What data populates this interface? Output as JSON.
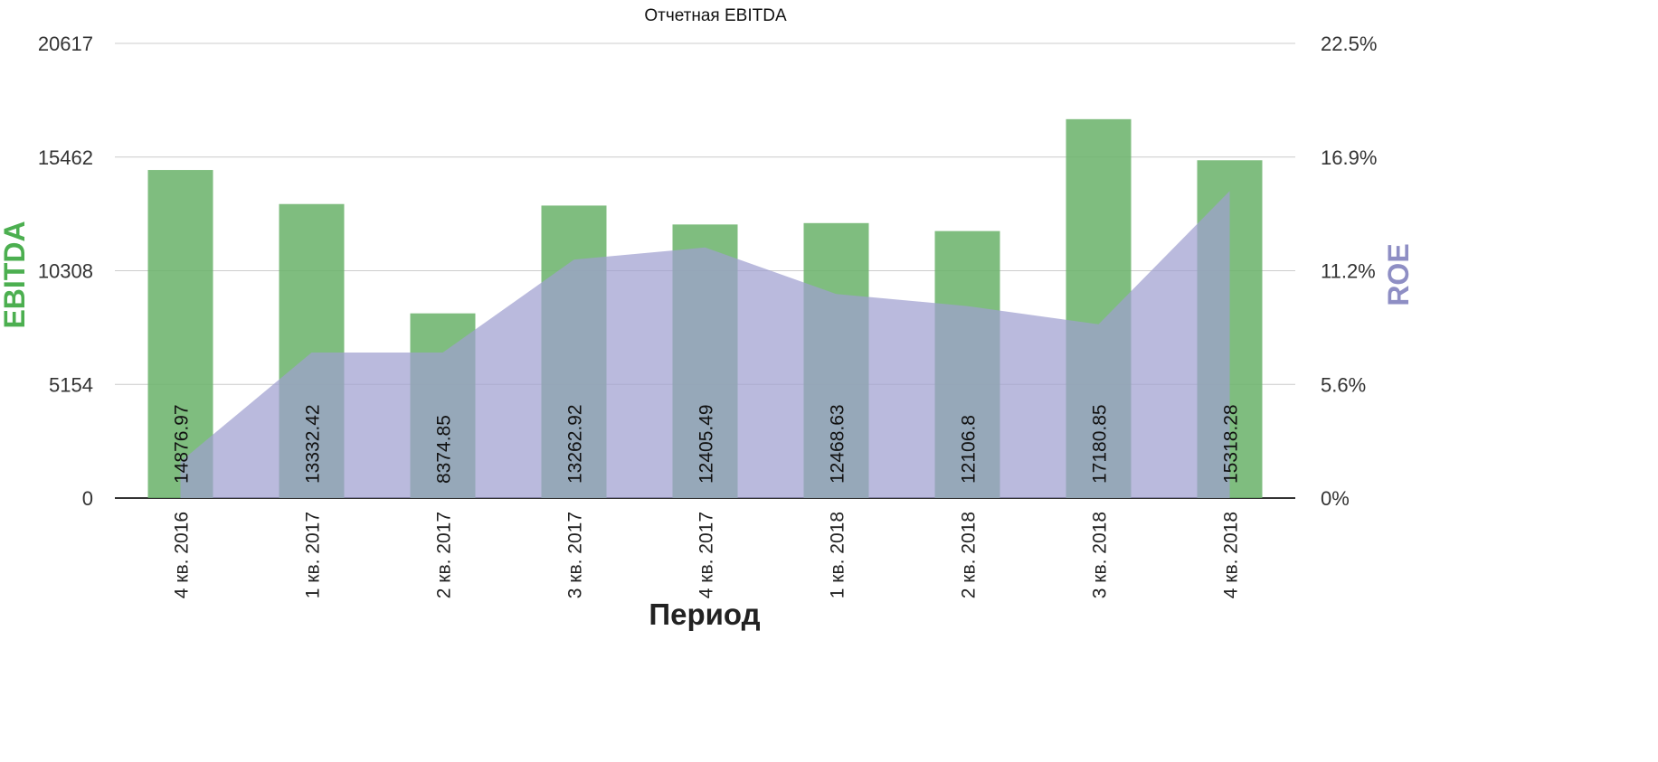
{
  "chart_data": {
    "type": "bar",
    "title": "Отчетная EBITDA",
    "xlabel": "Период",
    "ylabel": "EBITDA",
    "y2label": "ROE",
    "categories": [
      "4 кв. 2016",
      "1 кв. 2017",
      "2 кв. 2017",
      "3 кв. 2017",
      "4 кв. 2017",
      "1 кв. 2018",
      "2 кв. 2018",
      "3 кв. 2018",
      "4 кв. 2018"
    ],
    "series": [
      {
        "name": "EBITDA",
        "type": "bar",
        "axis": "left",
        "color": "#6db46d",
        "values": [
          14876.97,
          13332.42,
          8374.85,
          13262.92,
          12405.49,
          12468.63,
          12106.8,
          17180.85,
          15318.28
        ],
        "labels": [
          "14876.97",
          "13332.42",
          "8374.85",
          "13262.92",
          "12405.49",
          "12468.63",
          "12106.8",
          "17180.85",
          "15318.28"
        ]
      },
      {
        "name": "ROE",
        "type": "area",
        "axis": "right",
        "color": "#9f9fd0",
        "values": [
          1.8,
          7.2,
          7.2,
          11.8,
          12.4,
          10.1,
          9.5,
          8.6,
          15.2
        ]
      }
    ],
    "ylim": [
      0,
      20617
    ],
    "yticks": [
      "0",
      "5154",
      "10308",
      "15462",
      "20617"
    ],
    "y2lim": [
      0,
      22.5
    ],
    "y2ticks": [
      "0%",
      "5.6%",
      "11.2%",
      "16.9%",
      "22.5%"
    ],
    "grid": true,
    "legend": "none"
  }
}
